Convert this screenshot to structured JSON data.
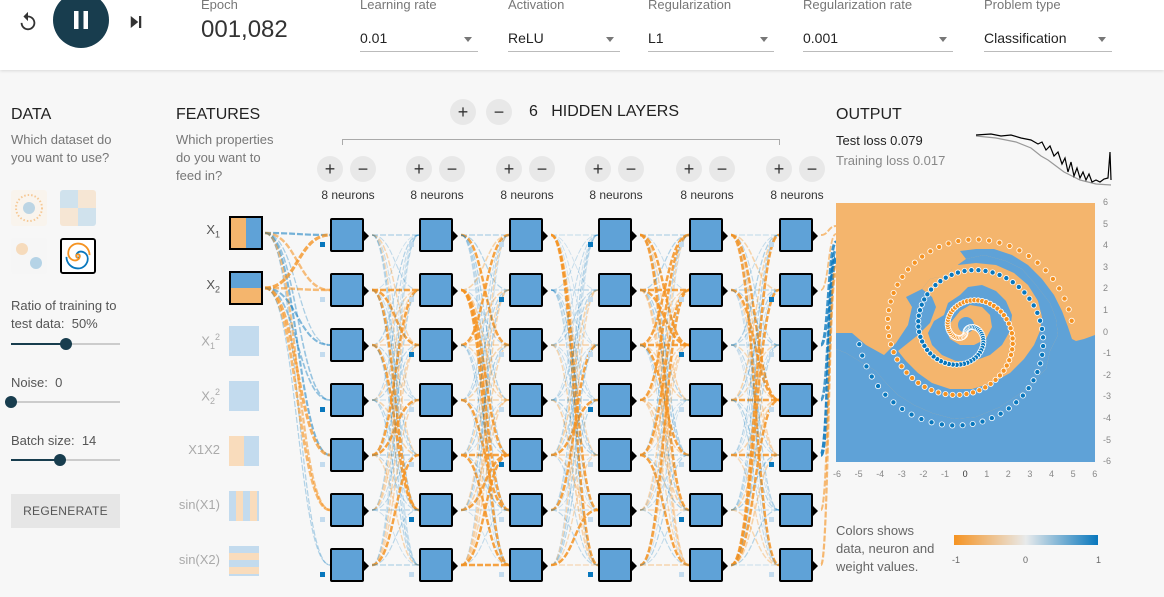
{
  "toolbar": {
    "epoch_label": "Epoch",
    "epoch_value": "001,082",
    "selects": [
      {
        "key": "learning_rate",
        "label": "Learning rate",
        "value": "0.01"
      },
      {
        "key": "activation",
        "label": "Activation",
        "value": "ReLU"
      },
      {
        "key": "regularization",
        "label": "Regularization",
        "value": "L1"
      },
      {
        "key": "regularization_rate",
        "label": "Regularization rate",
        "value": "0.001"
      },
      {
        "key": "problem_type",
        "label": "Problem type",
        "value": "Classification"
      }
    ],
    "icons": {
      "reset": "reset-icon",
      "play": "pause-icon",
      "step": "step-forward-icon"
    }
  },
  "data_panel": {
    "title": "DATA",
    "subtitle": "Which dataset do you want to use?",
    "datasets": [
      "circle",
      "xor",
      "gaussian",
      "spiral"
    ],
    "selected_dataset": "spiral",
    "ratio_label": "Ratio of training to test data:",
    "ratio_value": "50%",
    "ratio_fraction": 0.5,
    "noise_label": "Noise:",
    "noise_value": "0",
    "noise_fraction": 0,
    "batch_label": "Batch size:",
    "batch_value": "14",
    "batch_fraction": 0.45,
    "regenerate_label": "REGENERATE"
  },
  "features_panel": {
    "title": "FEATURES",
    "subtitle": "Which properties do you want to feed in?",
    "features": [
      {
        "label": "X1",
        "base": "X",
        "sub": "1",
        "sup": "",
        "active": true
      },
      {
        "label": "X2",
        "base": "X",
        "sub": "2",
        "sup": "",
        "active": true
      },
      {
        "label": "X12",
        "base": "X",
        "sub": "1",
        "sup": "2",
        "active": false
      },
      {
        "label": "X22",
        "base": "X",
        "sub": "2",
        "sup": "2",
        "active": false
      },
      {
        "label": "X1X2",
        "base": "X1X2",
        "sub": "",
        "sup": "",
        "active": false
      },
      {
        "label": "sin(X1)",
        "base": "sin(X1)",
        "sub": "",
        "sup": "",
        "active": false
      },
      {
        "label": "sin(X2)",
        "base": "sin(X2)",
        "sub": "",
        "sup": "",
        "active": false
      }
    ]
  },
  "network": {
    "hidden_layers_count": "6",
    "hidden_layers_label": "HIDDEN LAYERS",
    "layers": [
      {
        "neurons_label": "8 neurons"
      },
      {
        "neurons_label": "8 neurons"
      },
      {
        "neurons_label": "8 neurons"
      },
      {
        "neurons_label": "8 neurons"
      },
      {
        "neurons_label": "8 neurons"
      },
      {
        "neurons_label": "8 neurons"
      }
    ]
  },
  "output_panel": {
    "title": "OUTPUT",
    "test_loss_label": "Test loss 0.079",
    "training_loss_label": "Training loss 0.017",
    "y_ticks": [
      "6",
      "5",
      "4",
      "3",
      "2",
      "1",
      "0",
      "-1",
      "-2",
      "-3",
      "-4",
      "-5",
      "-6"
    ],
    "x_ticks": [
      "-6",
      "-5",
      "-4",
      "-3",
      "-2",
      "-1",
      "0",
      "1",
      "2",
      "3",
      "4",
      "5",
      "6"
    ],
    "legend_text": "Colors shows data, neuron and weight values.",
    "legend_ticks": [
      "-1",
      "0",
      "1"
    ]
  },
  "colors": {
    "orange": "#f59322",
    "blue": "#0877bd",
    "region_orange": "#f4b56d",
    "region_blue": "#5fa2d7",
    "dark": "#183d4e"
  }
}
